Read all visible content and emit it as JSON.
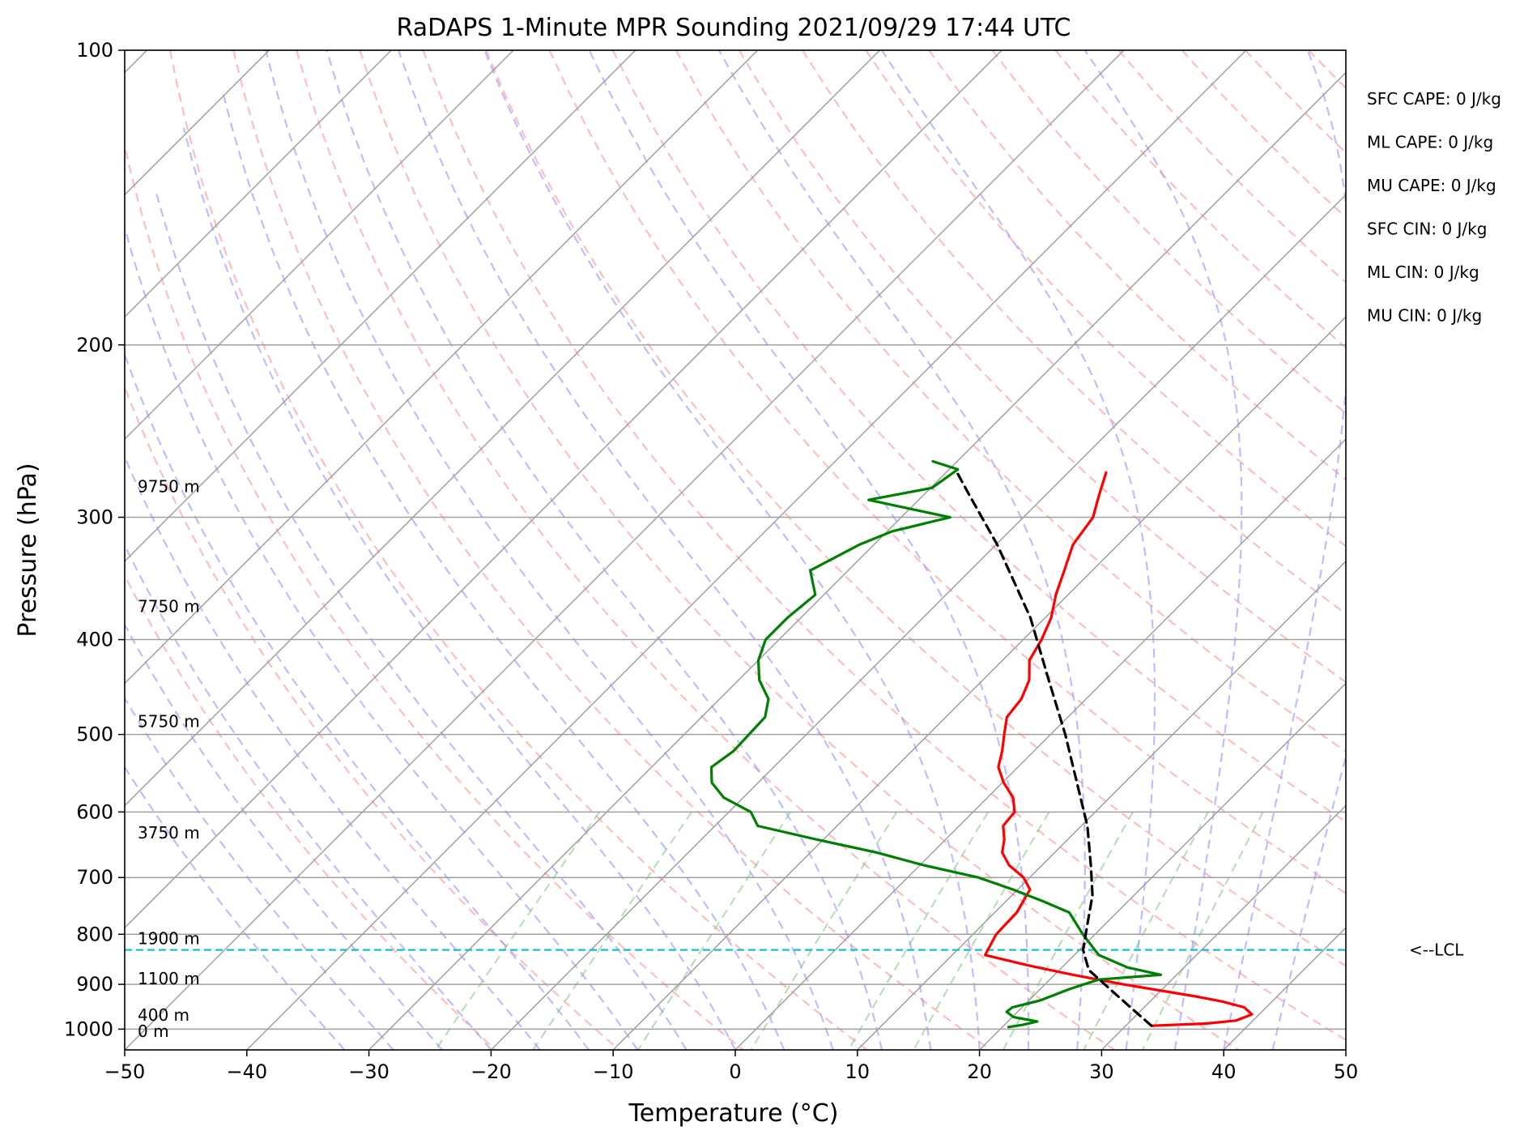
{
  "chart_data": {
    "type": "line",
    "title": "RaDAPS 1-Minute MPR Sounding 2021/09/29 17:44 UTC",
    "xlabel": "Temperature (°C)",
    "ylabel": "Pressure (hPa)",
    "xlim": [
      -50,
      50
    ],
    "ylim": [
      1050,
      100
    ],
    "y_scale": "log",
    "grid": true,
    "x_ticks": [
      -50,
      -40,
      -30,
      -20,
      -10,
      0,
      10,
      20,
      30,
      40,
      50
    ],
    "x_tick_labels": [
      "−50",
      "−40",
      "−30",
      "−20",
      "−10",
      "0",
      "10",
      "20",
      "30",
      "40",
      "50"
    ],
    "y_ticks": [
      100,
      200,
      300,
      400,
      500,
      600,
      700,
      800,
      900,
      1000
    ],
    "y_tick_labels": [
      "100",
      "200",
      "300",
      "400",
      "500",
      "600",
      "700",
      "800",
      "900",
      "1000"
    ],
    "skew_description": "isotherms skewed 45° (Skew-T log-P diagram)",
    "series": [
      {
        "key": "temperature",
        "color": "#ff0000",
        "points": [
          [
            32.1,
            992
          ],
          [
            36.4,
            987
          ],
          [
            38.6,
            980
          ],
          [
            39.4,
            966
          ],
          [
            38.2,
            950
          ],
          [
            35.9,
            937
          ],
          [
            33.1,
            925
          ],
          [
            26.4,
            900
          ],
          [
            21.5,
            880
          ],
          [
            16.9,
            860
          ],
          [
            12.7,
            840
          ],
          [
            11.9,
            800
          ],
          [
            11.8,
            760
          ],
          [
            11.0,
            720
          ],
          [
            9.5,
            700
          ],
          [
            7.3,
            680
          ],
          [
            5.7,
            660
          ],
          [
            4.8,
            640
          ],
          [
            3.6,
            620
          ],
          [
            3.4,
            600
          ],
          [
            2.1,
            580
          ],
          [
            0.1,
            560
          ],
          [
            -1.6,
            540
          ],
          [
            -2.6,
            520
          ],
          [
            -3.8,
            500
          ],
          [
            -5.0,
            480
          ],
          [
            -5.3,
            460
          ],
          [
            -6.2,
            440
          ],
          [
            -7.8,
            420
          ],
          [
            -8.5,
            400
          ],
          [
            -9.5,
            380
          ],
          [
            -11.0,
            360
          ],
          [
            -12.3,
            340
          ],
          [
            -13.7,
            320
          ],
          [
            -14.3,
            300
          ],
          [
            -15.6,
            285
          ],
          [
            -16.9,
            270
          ]
        ]
      },
      {
        "key": "dewpoint",
        "color": "#008000",
        "points": [
          [
            20.5,
            995
          ],
          [
            21.5,
            990
          ],
          [
            22.4,
            982
          ],
          [
            20.1,
            972
          ],
          [
            19.1,
            960
          ],
          [
            19.2,
            950
          ],
          [
            20.9,
            935
          ],
          [
            22.4,
            910
          ],
          [
            24.0,
            890
          ],
          [
            28.7,
            880
          ],
          [
            25.4,
            865
          ],
          [
            22.0,
            840
          ],
          [
            19.0,
            800
          ],
          [
            16.1,
            760
          ],
          [
            13.0,
            740
          ],
          [
            9.6,
            720
          ],
          [
            5.8,
            700
          ],
          [
            0.3,
            680
          ],
          [
            -4.6,
            660
          ],
          [
            -10.6,
            640
          ],
          [
            -16.5,
            620
          ],
          [
            -18.2,
            600
          ],
          [
            -21.6,
            580
          ],
          [
            -23.8,
            560
          ],
          [
            -25.1,
            540
          ],
          [
            -24.6,
            520
          ],
          [
            -24.7,
            500
          ],
          [
            -24.8,
            480
          ],
          [
            -26.0,
            460
          ],
          [
            -28.3,
            440
          ],
          [
            -30.0,
            420
          ],
          [
            -31.1,
            400
          ],
          [
            -31.1,
            380
          ],
          [
            -30.7,
            360
          ],
          [
            -33.1,
            340
          ],
          [
            -31.2,
            320
          ],
          [
            -29.6,
            310
          ],
          [
            -26.0,
            300
          ],
          [
            -34.1,
            288
          ],
          [
            -29.9,
            280
          ],
          [
            -29.3,
            268
          ],
          [
            -32.0,
            263
          ]
        ]
      },
      {
        "key": "parcel",
        "color": "#000000",
        "style": "dashed",
        "points": [
          [
            32.1,
            992
          ],
          [
            26.5,
            920
          ],
          [
            22.4,
            870
          ],
          [
            20.3,
            830
          ],
          [
            18.5,
            780
          ],
          [
            16.6,
            730
          ],
          [
            14.0,
            680
          ],
          [
            10.5,
            620
          ],
          [
            6.1,
            560
          ],
          [
            1.2,
            500
          ],
          [
            -4.6,
            440
          ],
          [
            -11.2,
            380
          ],
          [
            -19.9,
            320
          ],
          [
            -26.2,
            285
          ],
          [
            -29.5,
            268
          ]
        ]
      }
    ],
    "lcl_pressure": 830,
    "lcl_label": "<--LCL",
    "height_labels": [
      {
        "text": "9750 m",
        "p": 279
      },
      {
        "text": "7750 m",
        "p": 370
      },
      {
        "text": "5750 m",
        "p": 485
      },
      {
        "text": "3750 m",
        "p": 630
      },
      {
        "text": "1900 m",
        "p": 808
      },
      {
        "text": "1100 m",
        "p": 888
      },
      {
        "text": "400 m",
        "p": 967
      },
      {
        "text": "0 m",
        "p": 1005
      }
    ],
    "indices": [
      "SFC CAPE: 0 J/kg",
      "ML CAPE: 0 J/kg",
      "MU CAPE: 0 J/kg",
      "SFC CIN: 0 J/kg",
      "ML CIN: 0 J/kg",
      "MU CIN: 0 J/kg"
    ],
    "colors": {
      "isotherm": "#a0a0a0",
      "dry_adiabat": "#ff9a9a",
      "moist_adiabat": "#9a9aff",
      "mixing_ratio": "#7fc47f",
      "lcl_line": "#17becf"
    }
  }
}
